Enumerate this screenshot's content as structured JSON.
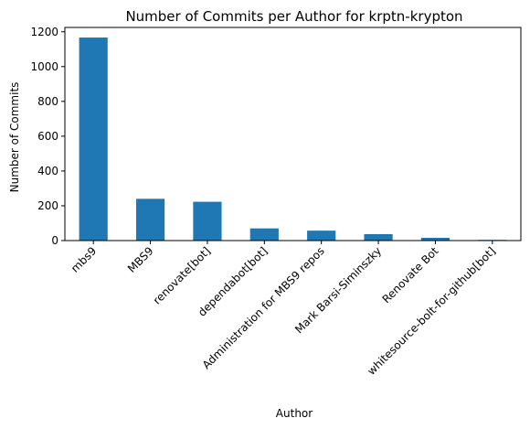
{
  "chart_data": {
    "type": "bar",
    "title": "Number of Commits per Author for krptn-krypton",
    "xlabel": "Author",
    "ylabel": "Number of Commits",
    "categories": [
      "mbs9",
      "MBS9",
      "renovate[bot]",
      "dependabot[bot]",
      "Administration for MBS9 repos",
      "Mark Barsi-Siminszky",
      "Renovate Bot",
      "whitesource-bolt-for-github[bot]"
    ],
    "values": [
      1167,
      240,
      223,
      70,
      57,
      37,
      16,
      4
    ],
    "ylim": [
      0,
      1225
    ],
    "yticks": [
      0,
      200,
      400,
      600,
      800,
      1000,
      1200
    ],
    "colors": {
      "bar": "#1f77b4"
    },
    "grid": false,
    "legend": "none"
  }
}
